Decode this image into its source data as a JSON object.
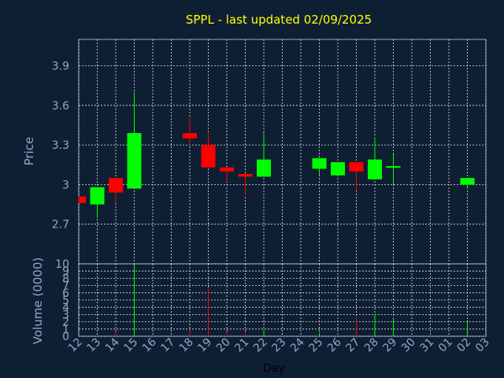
{
  "chart_data": {
    "type": "candlestick",
    "title": "SPPL - last updated 02/09/2025",
    "xlabel": "Day",
    "categories": [
      "12",
      "13",
      "14",
      "15",
      "16",
      "17",
      "18",
      "19",
      "20",
      "21",
      "22",
      "23",
      "24",
      "25",
      "26",
      "27",
      "28",
      "29",
      "30",
      "31",
      "01",
      "02",
      "03"
    ],
    "price_panel": {
      "ylabel": "Price",
      "yticks": [
        "2.7",
        "3",
        "3.3",
        "3.6",
        "3.9"
      ],
      "ylim": [
        2.4,
        4.1
      ],
      "up_color": "#00ff00",
      "down_color": "#ff0000",
      "candles": [
        {
          "x": "12",
          "open": 2.91,
          "high": 2.91,
          "low": 2.86,
          "close": 2.86
        },
        {
          "x": "13",
          "open": 2.85,
          "high": 2.98,
          "low": 2.75,
          "close": 2.98
        },
        {
          "x": "14",
          "open": 3.05,
          "high": 3.05,
          "low": 2.86,
          "close": 2.94
        },
        {
          "x": "15",
          "open": 2.97,
          "high": 3.7,
          "low": 2.97,
          "close": 3.39
        },
        {
          "x": "18",
          "open": 3.39,
          "high": 3.51,
          "low": 3.3,
          "close": 3.35
        },
        {
          "x": "19",
          "open": 3.3,
          "high": 3.4,
          "low": 3.13,
          "close": 3.13
        },
        {
          "x": "20",
          "open": 3.13,
          "high": 3.13,
          "low": 3.02,
          "close": 3.1
        },
        {
          "x": "21",
          "open": 3.08,
          "high": 3.08,
          "low": 2.92,
          "close": 3.06
        },
        {
          "x": "22",
          "open": 3.06,
          "high": 3.4,
          "low": 3.06,
          "close": 3.19
        },
        {
          "x": "25",
          "open": 3.12,
          "high": 3.2,
          "low": 3.07,
          "close": 3.2
        },
        {
          "x": "26",
          "open": 3.07,
          "high": 3.17,
          "low": 3.07,
          "close": 3.17
        },
        {
          "x": "27",
          "open": 3.17,
          "high": 3.17,
          "low": 2.95,
          "close": 3.1
        },
        {
          "x": "28",
          "open": 3.04,
          "high": 3.36,
          "low": 3.04,
          "close": 3.19
        },
        {
          "x": "29",
          "open": 3.13,
          "high": 3.23,
          "low": 3.0,
          "close": 3.14
        },
        {
          "x": "02",
          "open": 3.0,
          "high": 3.05,
          "low": 2.97,
          "close": 3.05
        }
      ]
    },
    "volume_panel": {
      "ylabel": "Volume (0000)",
      "yticks": [
        "0",
        "1",
        "2",
        "3",
        "4",
        "5",
        "6",
        "7",
        "8",
        "9",
        "10"
      ],
      "ylim": [
        0,
        10
      ],
      "bars": [
        {
          "x": "14",
          "value": 0.6,
          "color": "#ff0000"
        },
        {
          "x": "15",
          "value": 9.8,
          "color": "#00ff00"
        },
        {
          "x": "18",
          "value": 0.8,
          "color": "#ff0000"
        },
        {
          "x": "19",
          "value": 6.6,
          "color": "#ff0000"
        },
        {
          "x": "20",
          "value": 0.6,
          "color": "#ff0000"
        },
        {
          "x": "21",
          "value": 0.6,
          "color": "#ff0000"
        },
        {
          "x": "22",
          "value": 0.9,
          "color": "#00ff00"
        },
        {
          "x": "25",
          "value": 0.5,
          "color": "#00ff00"
        },
        {
          "x": "27",
          "value": 2.6,
          "color": "#ff0000"
        },
        {
          "x": "28",
          "value": 3.1,
          "color": "#00ff00"
        },
        {
          "x": "29",
          "value": 2.6,
          "color": "#00ff00"
        },
        {
          "x": "02",
          "value": 2.0,
          "color": "#00ff00"
        }
      ]
    },
    "grid": true,
    "colors": {
      "background": "#0f1f33",
      "axis_text": "#8fa9c8",
      "title": "#ffff00",
      "grid": "#e6e6e6"
    }
  }
}
